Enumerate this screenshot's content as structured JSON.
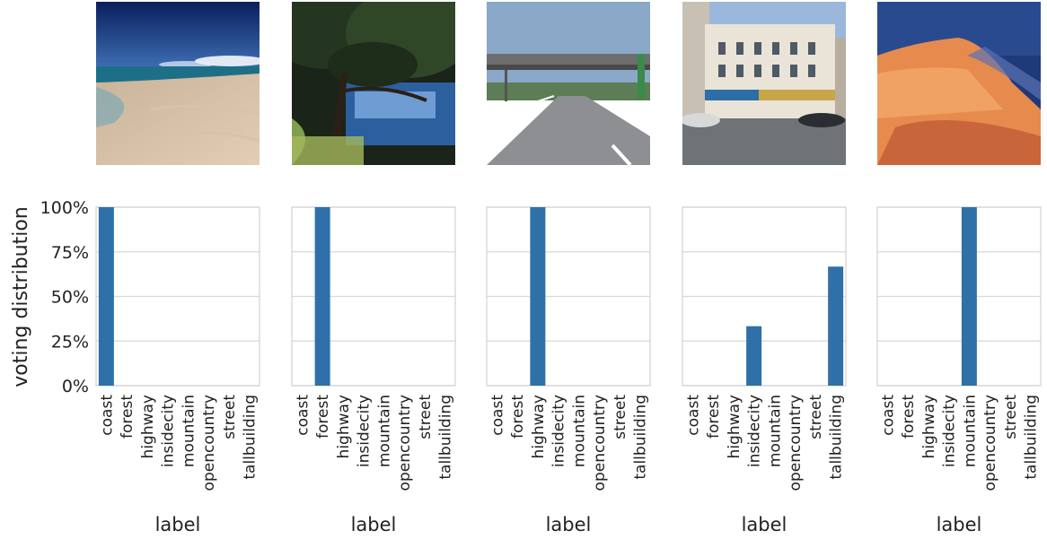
{
  "figure": {
    "ylabel": "voting distribution",
    "xlabel": "label",
    "categories": [
      "coast",
      "forest",
      "highway",
      "insidecity",
      "mountain",
      "opencountry",
      "street",
      "tallbuilding"
    ],
    "yticks": [
      "0%",
      "25%",
      "50%",
      "75%",
      "100%"
    ],
    "bar_color": "#2f70a8",
    "images": [
      {
        "scene": "beach-coastline",
        "icon": "coast-photo"
      },
      {
        "scene": "tree-over-water",
        "icon": "forest-photo"
      },
      {
        "scene": "highway-with-overpass",
        "icon": "highway-photo"
      },
      {
        "scene": "city-building-street",
        "icon": "city-photo"
      },
      {
        "scene": "snowy-mountain-sunset",
        "icon": "mountain-photo"
      }
    ]
  },
  "chart_data": [
    {
      "type": "bar",
      "categories": [
        "coast",
        "forest",
        "highway",
        "insidecity",
        "mountain",
        "opencountry",
        "street",
        "tallbuilding"
      ],
      "values": [
        1.0,
        0,
        0,
        0,
        0,
        0,
        0,
        0
      ],
      "ylim": [
        0,
        1
      ],
      "xlabel": "label",
      "ylabel": "voting distribution",
      "grid": true
    },
    {
      "type": "bar",
      "categories": [
        "coast",
        "forest",
        "highway",
        "insidecity",
        "mountain",
        "opencountry",
        "street",
        "tallbuilding"
      ],
      "values": [
        0,
        1.0,
        0,
        0,
        0,
        0,
        0,
        0
      ],
      "ylim": [
        0,
        1
      ],
      "xlabel": "label",
      "ylabel": "",
      "grid": true
    },
    {
      "type": "bar",
      "categories": [
        "coast",
        "forest",
        "highway",
        "insidecity",
        "mountain",
        "opencountry",
        "street",
        "tallbuilding"
      ],
      "values": [
        0,
        0,
        1.0,
        0,
        0,
        0,
        0,
        0
      ],
      "ylim": [
        0,
        1
      ],
      "xlabel": "label",
      "ylabel": "",
      "grid": true
    },
    {
      "type": "bar",
      "categories": [
        "coast",
        "forest",
        "highway",
        "insidecity",
        "mountain",
        "opencountry",
        "street",
        "tallbuilding"
      ],
      "values": [
        0,
        0,
        0,
        0.333,
        0,
        0,
        0,
        0.667
      ],
      "ylim": [
        0,
        1
      ],
      "xlabel": "label",
      "ylabel": "",
      "grid": true
    },
    {
      "type": "bar",
      "categories": [
        "coast",
        "forest",
        "highway",
        "insidecity",
        "mountain",
        "opencountry",
        "street",
        "tallbuilding"
      ],
      "values": [
        0,
        0,
        0,
        0,
        1.0,
        0,
        0,
        0
      ],
      "ylim": [
        0,
        1
      ],
      "xlabel": "label",
      "ylabel": "",
      "grid": true
    }
  ]
}
